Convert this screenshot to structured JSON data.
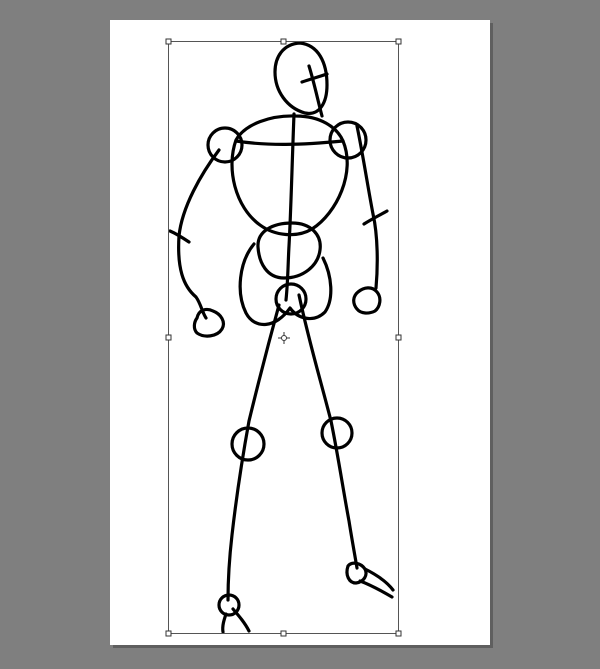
{
  "app": {
    "canvas_background": "#7f7f7f",
    "document_background": "#ffffff",
    "stroke_color": "#000000",
    "selection_color": "#555555"
  },
  "document": {
    "content": "stick-figure-sketch",
    "tool_state": "free-transform"
  },
  "icons": {
    "pivot": "crosshair-icon",
    "handles": "transform-handle-icon"
  }
}
